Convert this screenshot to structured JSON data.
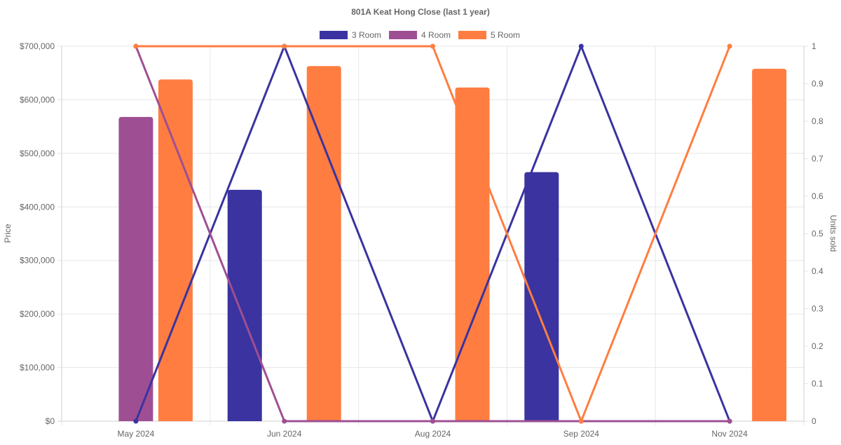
{
  "chart_data": {
    "type": "bar",
    "title": "801A Keat Hong Close (last 1 year)",
    "xlabel": "",
    "ylabel": "Price",
    "y2label": "Units sold",
    "categories": [
      "May 2024",
      "Jun 2024",
      "Aug 2024",
      "Sep 2024",
      "Nov 2024"
    ],
    "ylim": [
      0,
      700000
    ],
    "y2lim": [
      0,
      1
    ],
    "yticks": [
      "$0",
      "$100,000",
      "$200,000",
      "$300,000",
      "$400,000",
      "$500,000",
      "$600,000",
      "$700,000"
    ],
    "y2ticks": [
      "0",
      "0.1",
      "0.2",
      "0.3",
      "0.4",
      "0.5",
      "0.6",
      "0.7",
      "0.8",
      "0.9",
      "1"
    ],
    "grid": true,
    "legend_position": "top-center",
    "series": [
      {
        "name": "3 Room",
        "color": "#3a33a0",
        "price": [
          null,
          432000,
          null,
          465000,
          null
        ],
        "units_sold": [
          0,
          1,
          0,
          1,
          0
        ]
      },
      {
        "name": "4 Room",
        "color": "#9e4f93",
        "price": [
          568000,
          null,
          null,
          null,
          null
        ],
        "units_sold": [
          1,
          0,
          0,
          0,
          0
        ]
      },
      {
        "name": "5 Room",
        "color": "#ff7d40",
        "price": [
          638000,
          663000,
          623000,
          null,
          658000
        ],
        "units_sold": [
          1,
          1,
          1,
          0,
          1
        ]
      }
    ]
  }
}
